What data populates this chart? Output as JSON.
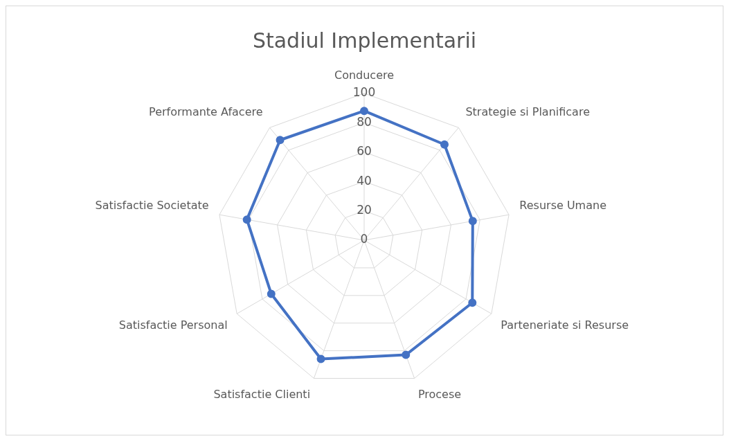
{
  "chart_data": {
    "type": "radar",
    "title": "Stadiul Implementarii",
    "categories": [
      "Conducere",
      "Strategie si Planificare",
      "Resurse Umane",
      "Parteneriate si Resurse",
      "Procese",
      "Satisfactie Clienti",
      "Satisfactie Personal",
      "Satisfactie Societate",
      "Performante Afacere"
    ],
    "series": [
      {
        "color": "#4472c4",
        "values": [
          88,
          85,
          75,
          85,
          83,
          86,
          73,
          81,
          89
        ]
      }
    ],
    "ylim": [
      0,
      100
    ],
    "yticks": [
      0,
      20,
      40,
      60,
      80,
      100
    ],
    "grid": true,
    "legend": false,
    "marker": "circle",
    "line_style": "solid"
  }
}
